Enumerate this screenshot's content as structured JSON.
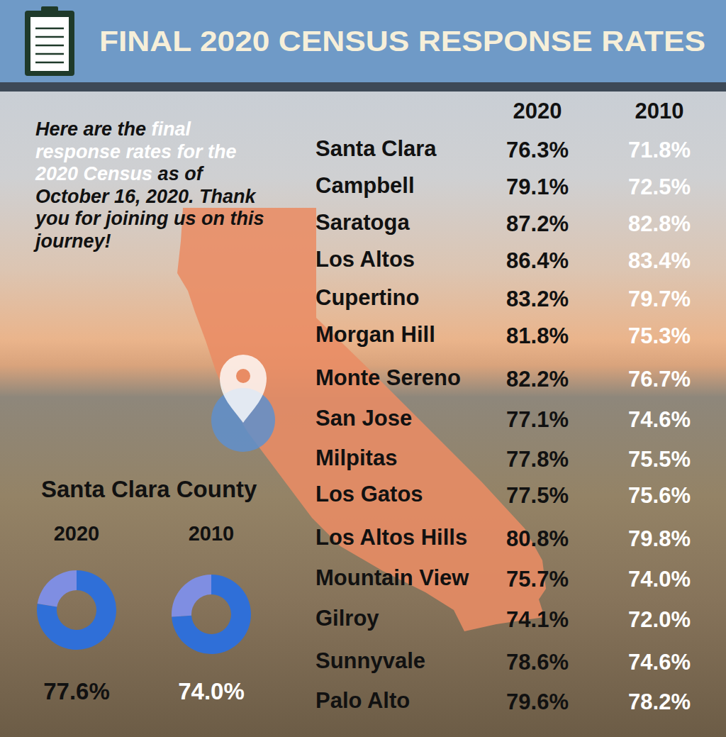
{
  "header": {
    "title": "FINAL 2020 CENSUS RESPONSE RATES"
  },
  "intro": [
    {
      "text": "Here are the ",
      "highlight": false
    },
    {
      "text": "final response rates for the 2020 Census",
      "highlight": true
    },
    {
      "text": " as of October 16, 2020. Thank you for joining us on this journey!",
      "highlight": false
    }
  ],
  "table": {
    "columns": [
      "2020",
      "2010"
    ],
    "rows": [
      [
        "Santa Clara",
        "76.3%",
        "71.8%"
      ],
      [
        "Campbell",
        "79.1%",
        "72.5%"
      ],
      [
        "Saratoga",
        "87.2%",
        "82.8%"
      ],
      [
        "Los Altos",
        "86.4%",
        "83.4%"
      ],
      [
        "Cupertino",
        "83.2%",
        "79.7%"
      ],
      [
        "Morgan Hill",
        "81.8%",
        "75.3%"
      ],
      [
        "Monte Sereno",
        "82.2%",
        "76.7%"
      ],
      [
        "San Jose",
        "77.1%",
        "74.6%"
      ],
      [
        "Milpitas",
        "77.8%",
        "75.5%"
      ],
      [
        "Los Gatos",
        "77.5%",
        "75.6%"
      ],
      [
        "Los Altos Hills",
        "80.8%",
        "79.8%"
      ],
      [
        "Mountain View",
        "75.7%",
        "74.0%"
      ],
      [
        "Gilroy",
        "74.1%",
        "72.0%"
      ],
      [
        "Sunnyvale",
        "78.6%",
        "74.6%"
      ],
      [
        "Palo Alto",
        "79.6%",
        "78.2%"
      ]
    ]
  },
  "county": {
    "title": "Santa Clara County"
  },
  "chart_data": [
    {
      "type": "pie",
      "title": "2020",
      "values": [
        77.6,
        22.4
      ],
      "colors": [
        "#2f6fd8",
        "#7f8ee2"
      ],
      "value_labels": [
        "77.6%",
        null
      ]
    },
    {
      "type": "pie",
      "title": "2010",
      "values": [
        74.0,
        26.0
      ],
      "colors": [
        "#2f6fd8",
        "#7f8ee2"
      ],
      "value_labels": [
        "74.0%",
        null
      ]
    }
  ]
}
